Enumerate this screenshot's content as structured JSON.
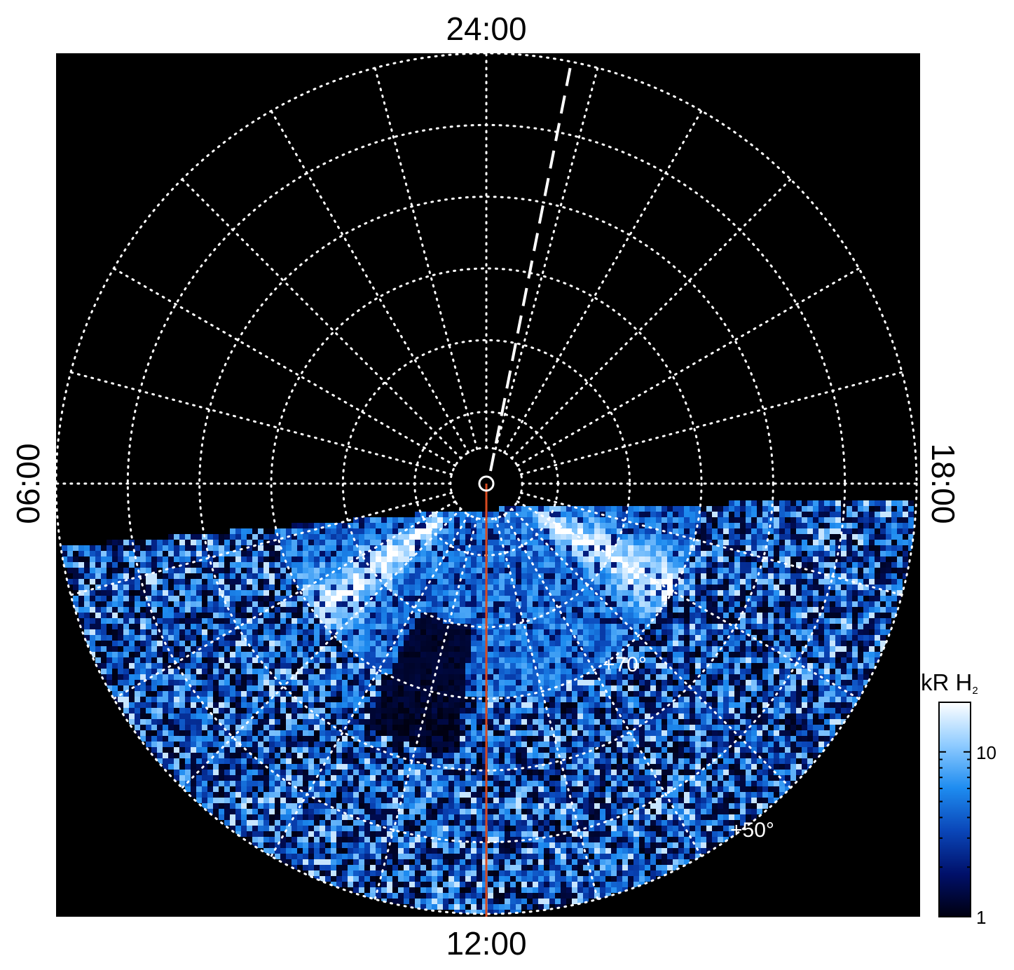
{
  "chart_data": {
    "type": "heatmap",
    "projection": "polar",
    "title": "",
    "local_time_labels": {
      "top": "24:00",
      "bottom": "12:00",
      "left": "06:00",
      "right": "18:00"
    },
    "latitude_labels": [
      "+70°",
      "+50°"
    ],
    "latitude_circles_deg": [
      90,
      85,
      80,
      70,
      60,
      50,
      40,
      30
    ],
    "meridian_step_hours": 1,
    "grid": true,
    "grid_style": "dotted white",
    "data_coverage": "dayside hemisphere (approx. 06:00 → 12:00 → 18:00)",
    "bright_emission_regions": [
      {
        "local_time": "~08:30",
        "latitude_range_deg": [
          55,
          80
        ],
        "level": "high"
      },
      {
        "local_time": "~16:00",
        "latitude_range_deg": [
          55,
          80
        ],
        "level": "high"
      }
    ],
    "noon_meridian_line": {
      "local_time": "12:00",
      "color": "#d84a20"
    },
    "dashed_meridian_line": {
      "local_time": "~23:00",
      "color": "#ffffff",
      "style": "dashed"
    },
    "colorbar": {
      "title": "kR H",
      "title_subscript": "2",
      "scale": "log",
      "range": [
        1,
        20
      ],
      "tick_labels": [
        "1",
        "10"
      ],
      "tick_values": [
        1,
        10
      ],
      "colors": [
        "#000010",
        "#00106a",
        "#0a46b8",
        "#1e8cf0",
        "#8ecbff",
        "#ffffff"
      ]
    }
  }
}
